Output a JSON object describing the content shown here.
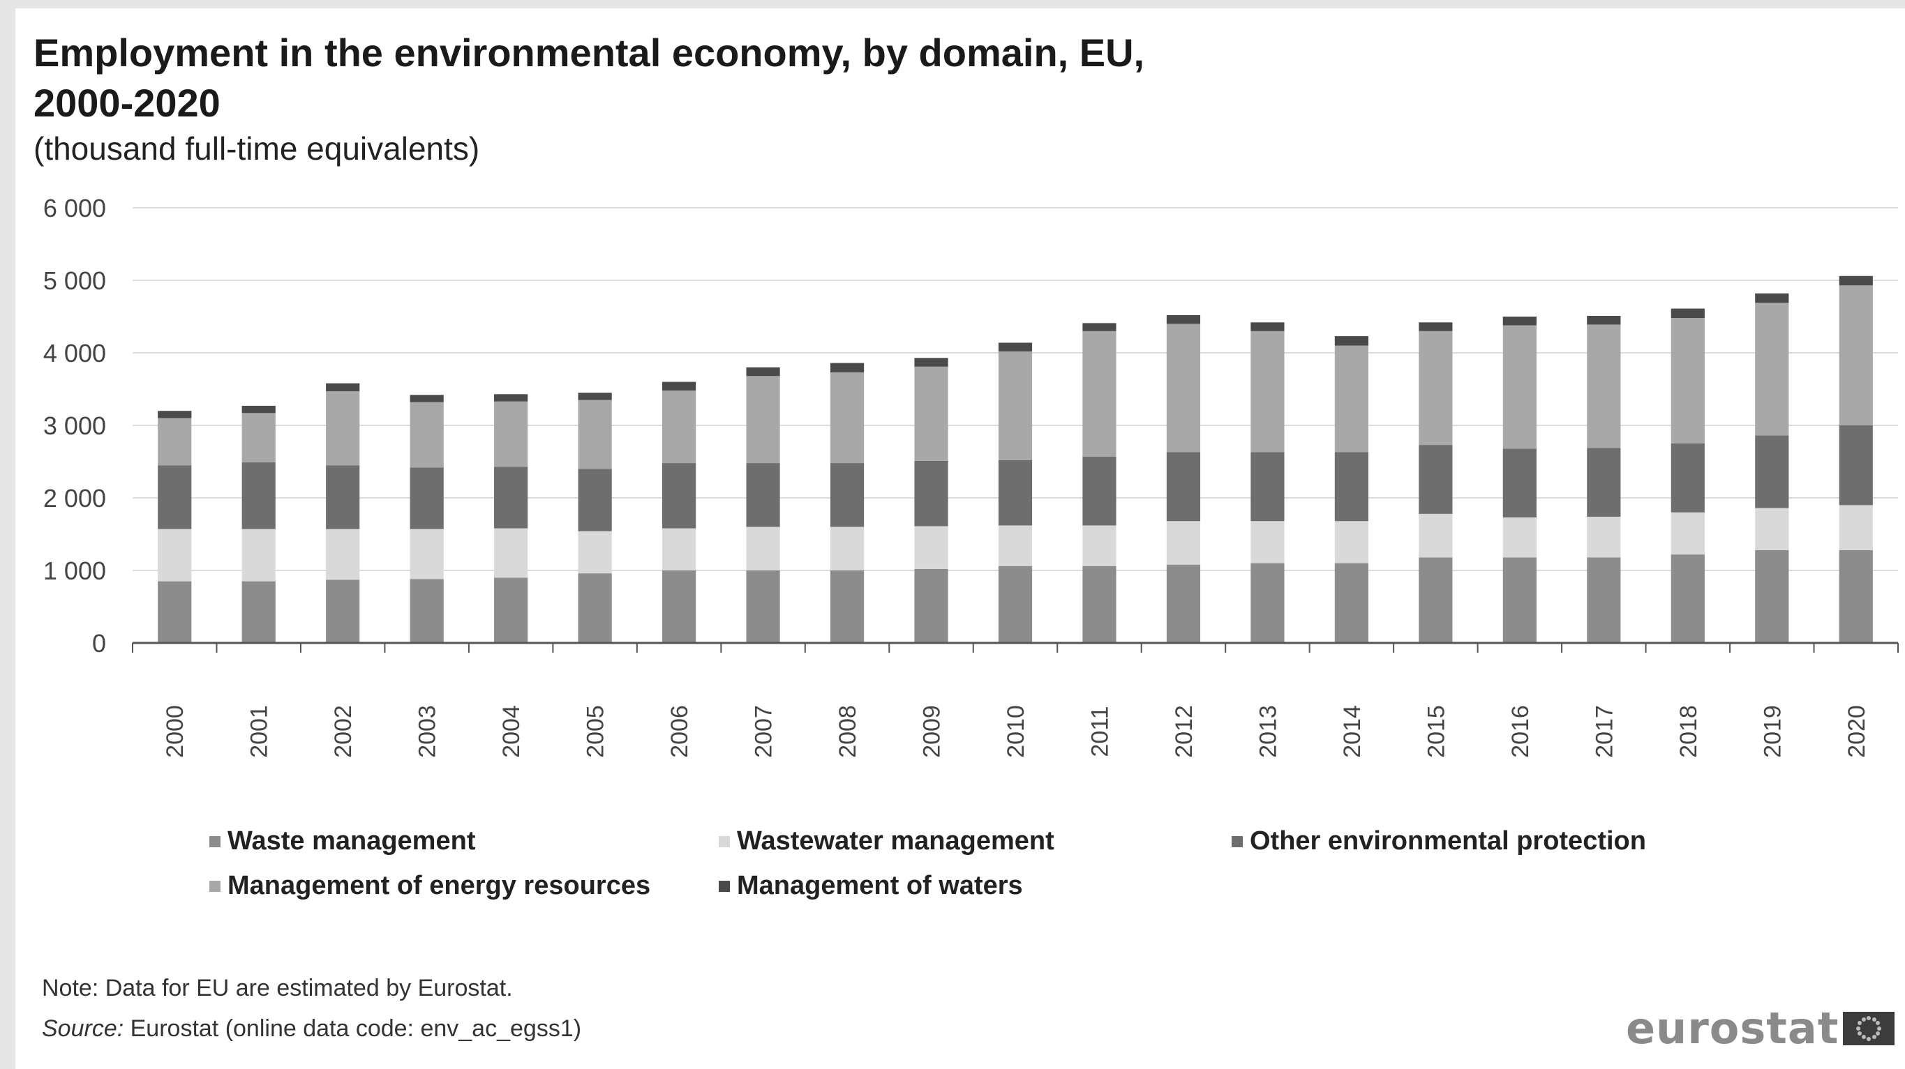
{
  "header": {
    "title": "Employment in the environmental economy, by domain, EU,\n2000-2020",
    "subtitle": "(thousand full-time equivalents)"
  },
  "footer": {
    "note": "Note: Data for EU are estimated by Eurostat.",
    "source_label": "Source:",
    "source_text": " Eurostat (online data code: env_ac_egss1)",
    "logo_text": "eurostat"
  },
  "chart_data": {
    "type": "bar",
    "stacked": true,
    "title": "Employment in the environmental economy, by domain, EU, 2000-2020",
    "subtitle": "(thousand full-time equivalents)",
    "ylim": [
      0,
      6000
    ],
    "yticks": [
      "0",
      "1 000",
      "2 000",
      "3 000",
      "4 000",
      "5 000",
      "6 000"
    ],
    "grid": true,
    "legend_position": "bottom",
    "categories": [
      "2000",
      "2001",
      "2002",
      "2003",
      "2004",
      "2005",
      "2006",
      "2007",
      "2008",
      "2009",
      "2010",
      "2011",
      "2012",
      "2013",
      "2014",
      "2015",
      "2016",
      "2017",
      "2018",
      "2019",
      "2020"
    ],
    "series": [
      {
        "name": "Waste management",
        "color": "#8c8c8c",
        "values": [
          850,
          850,
          870,
          880,
          900,
          960,
          1000,
          1000,
          1000,
          1020,
          1060,
          1060,
          1080,
          1100,
          1100,
          1180,
          1180,
          1180,
          1220,
          1280,
          1280
        ]
      },
      {
        "name": "Wastewater management",
        "color": "#d9d9d9",
        "values": [
          720,
          720,
          700,
          690,
          680,
          580,
          580,
          600,
          600,
          590,
          560,
          560,
          600,
          580,
          580,
          600,
          550,
          560,
          580,
          580,
          620
        ]
      },
      {
        "name": "Other environmental protection",
        "color": "#6e6e6e",
        "values": [
          880,
          920,
          880,
          850,
          850,
          860,
          900,
          880,
          880,
          900,
          900,
          950,
          950,
          950,
          950,
          950,
          950,
          950,
          950,
          1000,
          1100
        ]
      },
      {
        "name": "Management of energy resources",
        "color": "#a8a8a8",
        "values": [
          650,
          680,
          1020,
          900,
          900,
          950,
          1000,
          1200,
          1250,
          1300,
          1500,
          1730,
          1770,
          1670,
          1470,
          1570,
          1700,
          1700,
          1730,
          1830,
          1930
        ]
      },
      {
        "name": "Management of waters",
        "color": "#4a4a4a",
        "values": [
          100,
          100,
          110,
          100,
          100,
          100,
          120,
          120,
          130,
          120,
          120,
          110,
          120,
          120,
          130,
          120,
          120,
          120,
          130,
          130,
          130
        ]
      }
    ]
  }
}
